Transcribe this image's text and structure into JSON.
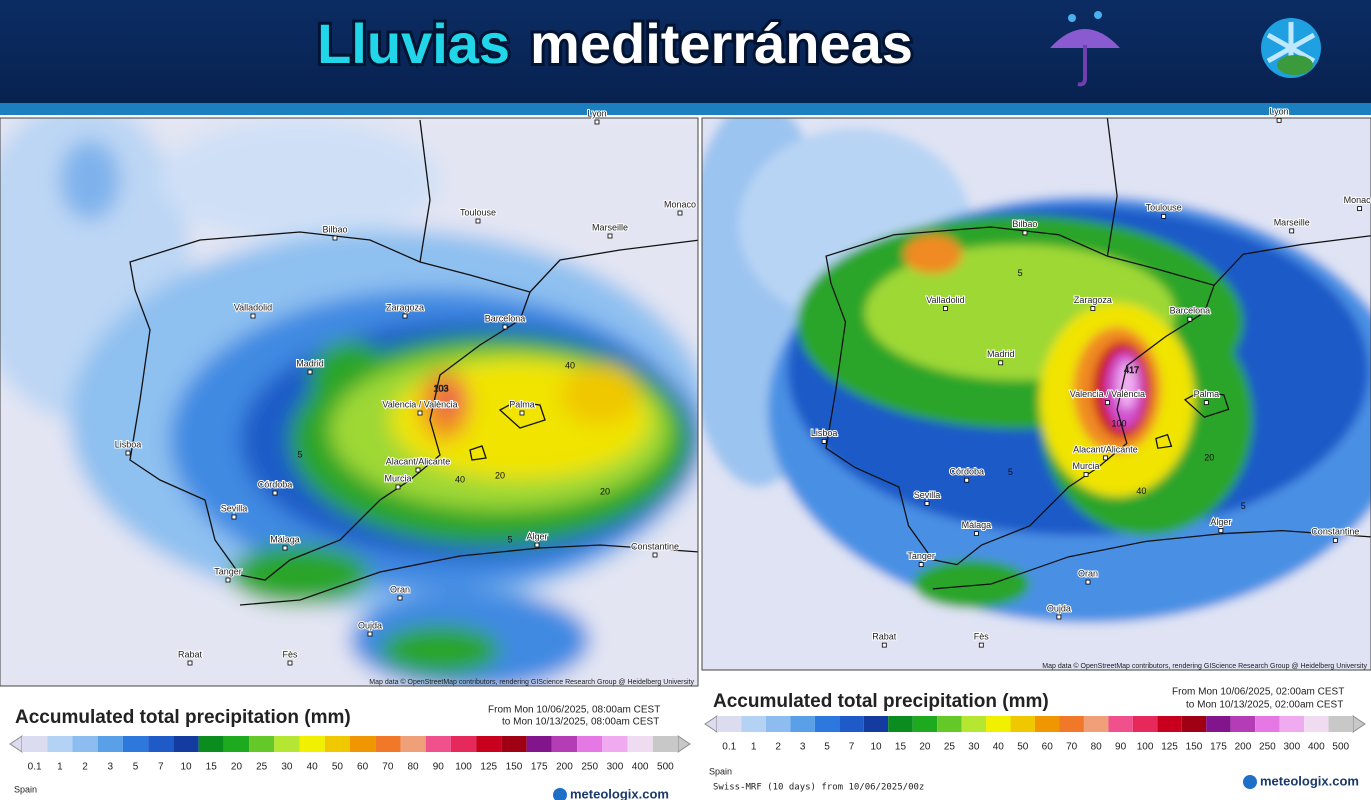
{
  "header": {
    "title_accent": "Lluvias",
    "title_rest": "mediterráneas"
  },
  "maps": [
    {
      "cities": [
        "Lyon",
        "Toulouse",
        "Monaco",
        "Marseille",
        "Bilbao",
        "Valladolid",
        "Zaragoza",
        "Barcelona",
        "Madrid",
        "Valencia / València",
        "Palma",
        "Lisboa",
        "Alacant/Alicante",
        "Murcia",
        "Córdoba",
        "Sevilla",
        "Málaga",
        "Alger",
        "Constantine",
        "Oran",
        "Tanger",
        "Oujda",
        "Rabat",
        "Fès"
      ],
      "annotations": [
        "103",
        "40",
        "20",
        "40",
        "20",
        "5",
        "5"
      ],
      "attribution": "Map data © OpenStreetMap contributors, rendering GIScience Research Group @ Heidelberg University",
      "legend": {
        "title": "Accumulated total precipitation (mm)",
        "from": "From Mon 10/06/2025, 08:00am CEST",
        "to": "to Mon 10/13/2025, 08:00am CEST",
        "ticks": [
          0.1,
          1,
          2,
          3,
          5,
          7,
          10,
          15,
          20,
          25,
          30,
          40,
          50,
          60,
          70,
          80,
          90,
          100,
          125,
          150,
          175,
          200,
          250,
          300,
          400,
          500
        ]
      },
      "region": "Spain",
      "brand": "meteologix.com"
    },
    {
      "cities": [
        "Lyon",
        "Toulouse",
        "Monaco",
        "Marseille",
        "Bilbao",
        "Valladolid",
        "Zaragoza",
        "Barcelona",
        "Madrid",
        "Valencia / València",
        "Palma",
        "Lisboa",
        "Alacant/Alicante",
        "Murcia",
        "Córdoba",
        "Sevilla",
        "Málaga",
        "Alger",
        "Constantine",
        "Oran",
        "Tanger",
        "Oujda",
        "Rabat",
        "Fès"
      ],
      "annotations": [
        "417",
        "100",
        "40",
        "20",
        "5",
        "5",
        "5"
      ],
      "attribution": "Map data © OpenStreetMap contributors, rendering GIScience Research Group @ Heidelberg University",
      "legend": {
        "title": "Accumulated total precipitation (mm)",
        "from": "From Mon 10/06/2025, 02:00am CEST",
        "to": "to Mon 10/13/2025, 02:00am CEST",
        "ticks": [
          0.1,
          1,
          2,
          3,
          5,
          7,
          10,
          15,
          20,
          25,
          30,
          40,
          50,
          60,
          70,
          80,
          90,
          100,
          125,
          150,
          175,
          200,
          250,
          300,
          400,
          500
        ]
      },
      "region": "Spain",
      "model": "Swiss-MRF (10 days) from 10/06/2025/00z",
      "brand": "meteologix.com"
    }
  ]
}
